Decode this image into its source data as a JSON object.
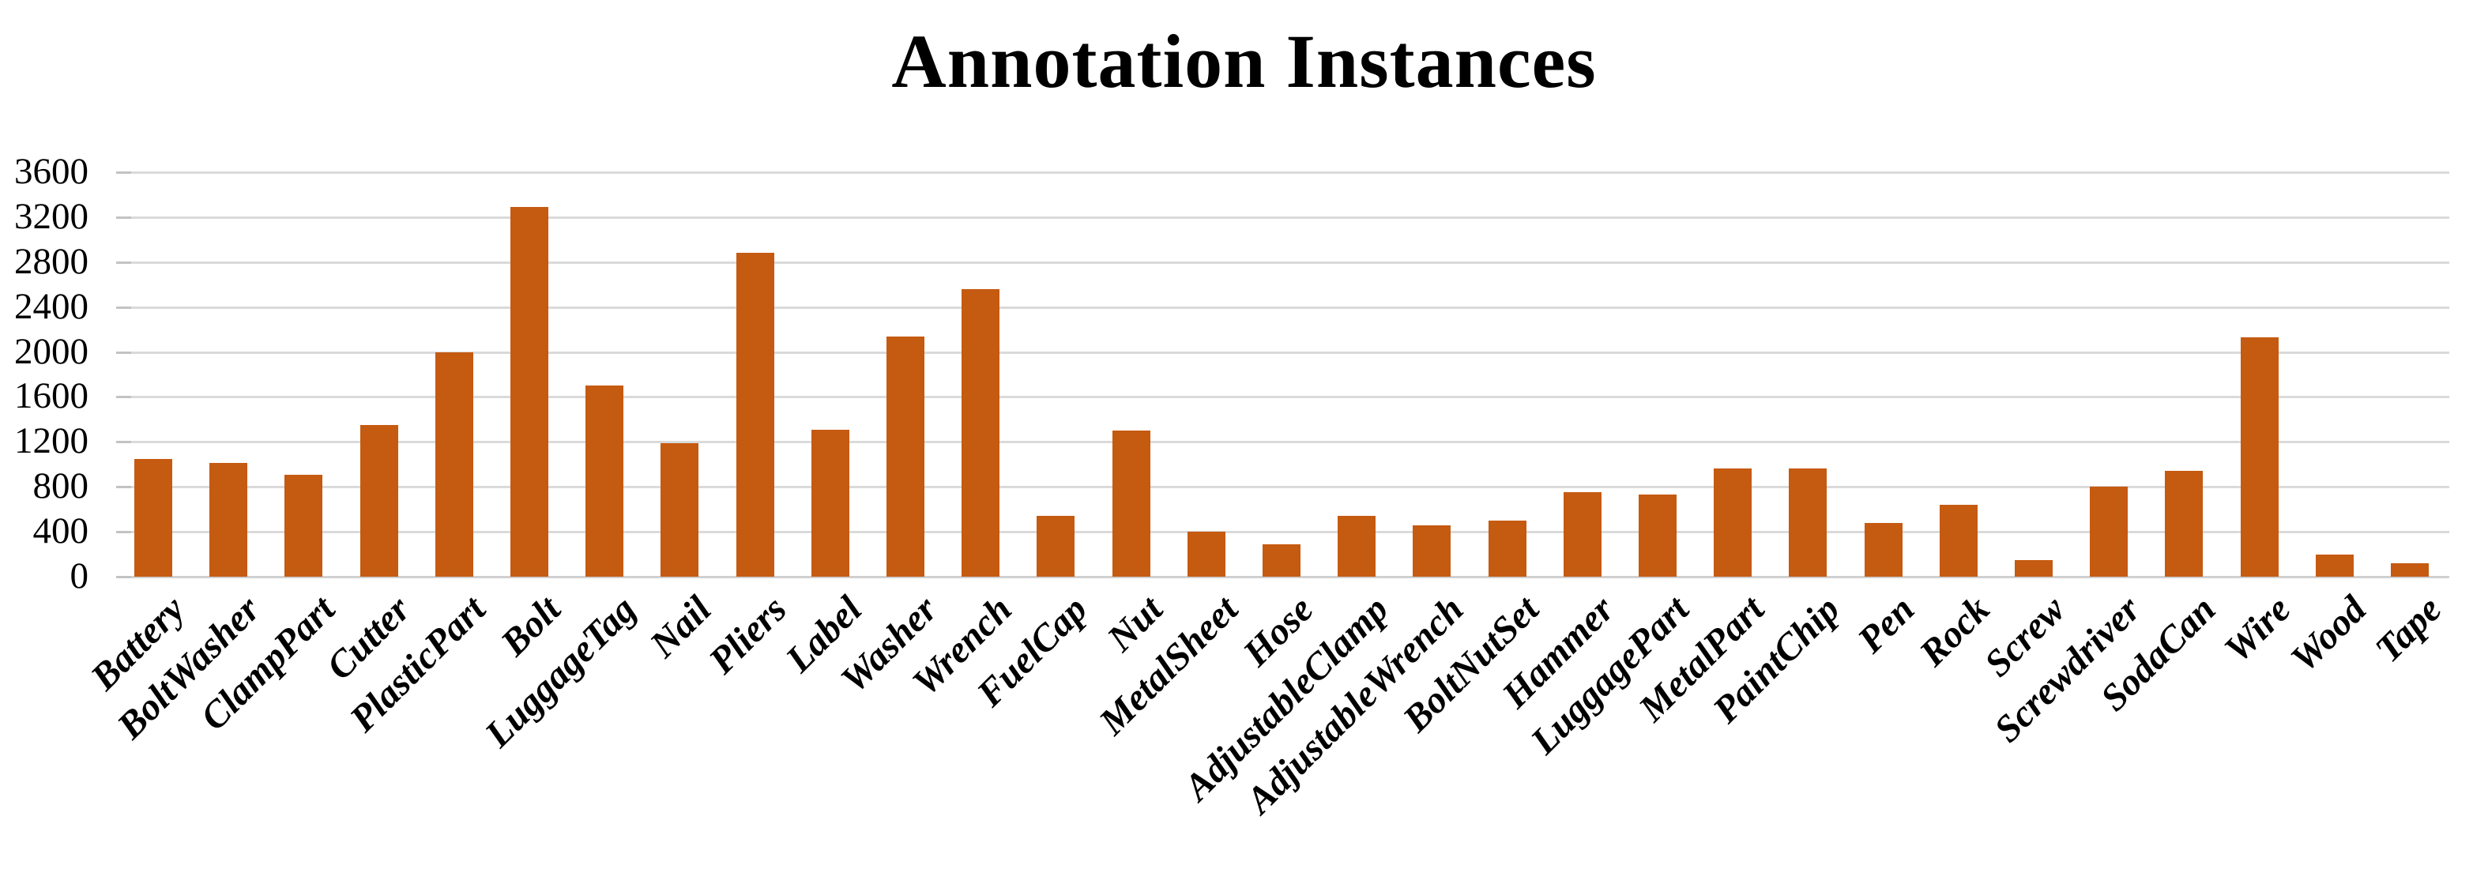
{
  "title": "Annotation Instances",
  "chart_data": {
    "type": "bar",
    "title": "Annotation Instances",
    "categories": [
      "Battery",
      "BoltWasher",
      "ClampPart",
      "Cutter",
      "PlasticPart",
      "Bolt",
      "LuggageTag",
      "Nail",
      "Pliers",
      "Label",
      "Washer",
      "Wrench",
      "FuelCap",
      "Nut",
      "MetalSheet",
      "Hose",
      "AdjustableClamp",
      "AdjustableWrench",
      "BoltNutSet",
      "Hammer",
      "LuggagePart",
      "MetalPart",
      "PaintChip",
      "Pen",
      "Rock",
      "Screw",
      "Screwdriver",
      "SodaCan",
      "Wire",
      "Wood",
      "Tape"
    ],
    "values": [
      1050,
      1010,
      910,
      1350,
      2000,
      3290,
      1700,
      1190,
      2880,
      1310,
      2140,
      2560,
      540,
      1300,
      400,
      290,
      540,
      460,
      500,
      750,
      730,
      960,
      960,
      480,
      640,
      150,
      800,
      940,
      2130,
      200,
      120
    ],
    "xlabel": "",
    "ylabel": "",
    "ylim": [
      0,
      3600
    ],
    "ytick_step": 400,
    "yticks": [
      0,
      400,
      800,
      1200,
      1600,
      2000,
      2400,
      2800,
      3200,
      3600
    ],
    "grid": true,
    "legend_position": "none",
    "bar_color": "#C55A11",
    "gridline_color": "#dadada",
    "axis_line_color": "#d0d0d0",
    "text_color": "#000000",
    "background_color": "#ffffff"
  }
}
